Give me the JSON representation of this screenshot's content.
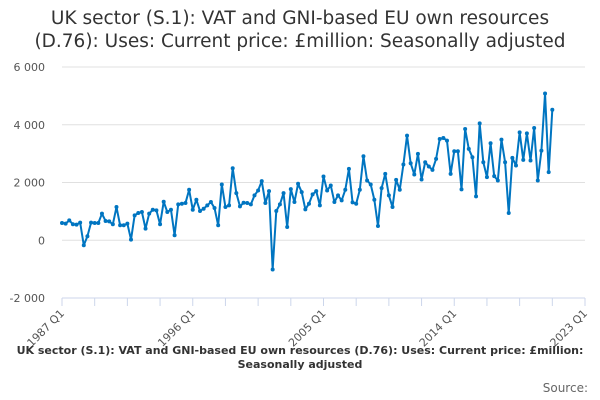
{
  "chart_data": {
    "type": "line",
    "title": "UK sector (S.1): VAT and GNI-based EU own resources (D.76): Uses: Current price: £million: Seasonally adjusted",
    "title_lines": [
      "UK sector (S.1): VAT and GNI-based EU own resources",
      "(D.76): Uses: Current price: £million: Seasonally adjusted"
    ],
    "series_label": "UK sector (S.1): VAT and GNI-based EU own resources (D.76): Uses: Current price: £million: Seasonally adjusted",
    "source_label": "Source:",
    "ylim": [
      -2000,
      6000
    ],
    "y_ticks": [
      -2000,
      0,
      2000,
      4000,
      6000
    ],
    "y_tick_labels": [
      "-2 000",
      "0",
      "2 000",
      "4 000",
      "6 000"
    ],
    "x_tick_labels": [
      "1987 Q1",
      "1996 Q1",
      "2005 Q1",
      "2014 Q1",
      "2023 Q1"
    ],
    "grid": true,
    "color": "#0075c1",
    "x_start_year": 1987,
    "values": [
      598,
      575,
      690,
      552,
      540,
      610,
      -173,
      138,
      610,
      598,
      598,
      920,
      667,
      655,
      552,
      1150,
      518,
      518,
      575,
      23,
      863,
      943,
      978,
      403,
      920,
      1058,
      1035,
      552,
      1334,
      978,
      1058,
      173,
      1242,
      1265,
      1288,
      1748,
      1058,
      1403,
      1012,
      1093,
      1208,
      1323,
      1116,
      518,
      1932,
      1150,
      1208,
      2495,
      1633,
      1173,
      1300,
      1288,
      1242,
      1553,
      1725,
      2047,
      1288,
      1702,
      -1013,
      1012,
      1242,
      1633,
      460,
      1771,
      1323,
      1955,
      1668,
      1070,
      1265,
      1587,
      1702,
      1208,
      2208,
      1725,
      1898,
      1323,
      1553,
      1380,
      1748,
      2472,
      1311,
      1265,
      1748,
      2910,
      2070,
      1932,
      1403,
      495,
      1805,
      2300,
      1553,
      1150,
      2093,
      1748,
      2622,
      3623,
      2668,
      2277,
      2990,
      2105,
      2703,
      2553,
      2438,
      2818,
      3508,
      3542,
      3450,
      2300,
      3082,
      3082,
      1760,
      3853,
      3163,
      2875,
      1518,
      4048,
      2703,
      2185,
      3358,
      2220,
      2070,
      3485,
      2703,
      943,
      2852,
      2588,
      3738,
      2783,
      3703,
      2760,
      3887,
      2070,
      3105,
      5083,
      2358,
      4520
    ]
  }
}
